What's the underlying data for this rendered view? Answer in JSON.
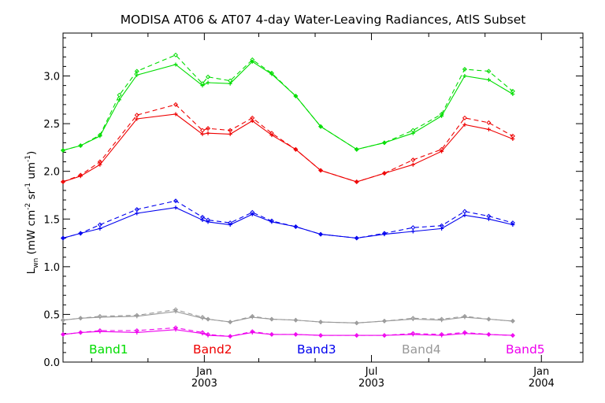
{
  "chart_data": {
    "type": "line",
    "title": "MODISA AT06 & AT07 4-day Water-Leaving Radiances, AtlS Subset",
    "ylabel": "L_wn (mW cm^-2 sr^-1 um^-1)",
    "xlabel": "",
    "ylim": [
      0,
      3.45
    ],
    "xlim": [
      "2002-08-01",
      "2004-02-15"
    ],
    "grid": false,
    "y_ticks": [
      {
        "value": 0.0,
        "label": "0.0"
      },
      {
        "value": 0.5,
        "label": "0.5"
      },
      {
        "value": 1.0,
        "label": "1.0"
      },
      {
        "value": 1.5,
        "label": "1.5"
      },
      {
        "value": 2.0,
        "label": "2.0"
      },
      {
        "value": 2.5,
        "label": "2.5"
      },
      {
        "value": 3.0,
        "label": "3.0"
      }
    ],
    "x_ticks": [
      {
        "date": "2003-01-01",
        "month": "Jan",
        "year": "2003"
      },
      {
        "date": "2003-07-01",
        "month": "Jul",
        "year": "2003"
      },
      {
        "date": "2004-01-01",
        "month": "Jan",
        "year": "2004"
      }
    ],
    "x": [
      "2002-08-01",
      "2002-08-20",
      "2002-09-10",
      "2002-10-01",
      "2002-10-20",
      "2002-11-10",
      "2002-12-01",
      "2002-12-10",
      "2002-12-30",
      "2003-01-05",
      "2003-01-29",
      "2003-02-22",
      "2003-03-15",
      "2003-04-10",
      "2003-05-07",
      "2003-06-15",
      "2003-07-15",
      "2003-08-15",
      "2003-09-15",
      "2003-10-10",
      "2003-11-05",
      "2003-12-01",
      "2003-12-24",
      "2004-01-20",
      "2004-02-15"
    ],
    "band_labels": [
      "Band1",
      "Band2",
      "Band3",
      "Band4",
      "Band5"
    ],
    "bands": [
      {
        "name": "Band1",
        "color": "#00dd00",
        "at06": [
          2.22,
          2.27,
          2.37,
          2.75,
          3.01,
          null,
          3.12,
          null,
          2.9,
          2.93,
          2.92,
          3.15,
          3.02,
          2.79,
          2.47,
          2.23,
          2.3,
          2.4,
          2.58,
          3.0,
          2.96,
          2.81,
          null,
          null,
          null
        ],
        "at07": [
          2.22,
          2.27,
          2.38,
          2.8,
          3.05,
          null,
          3.22,
          null,
          2.92,
          2.99,
          2.95,
          3.17,
          3.03,
          2.79,
          2.47,
          2.23,
          2.3,
          2.43,
          2.6,
          3.07,
          3.05,
          2.84,
          null,
          null,
          null
        ]
      },
      {
        "name": "Band2",
        "color": "#ee0000",
        "at06": [
          1.89,
          1.95,
          2.07,
          null,
          2.55,
          null,
          2.6,
          null,
          2.39,
          2.4,
          2.39,
          2.53,
          2.38,
          2.23,
          2.01,
          1.89,
          1.98,
          2.07,
          2.21,
          2.49,
          2.44,
          2.34,
          null,
          null,
          null
        ],
        "at07": [
          1.89,
          1.96,
          2.1,
          null,
          2.59,
          null,
          2.7,
          null,
          2.43,
          2.45,
          2.43,
          2.56,
          2.4,
          2.23,
          2.01,
          1.89,
          1.98,
          2.12,
          2.23,
          2.56,
          2.51,
          2.37,
          null,
          null,
          null
        ]
      },
      {
        "name": "Band3",
        "color": "#0000ee",
        "at06": [
          1.3,
          1.35,
          1.4,
          null,
          1.56,
          null,
          1.62,
          null,
          1.49,
          1.47,
          1.44,
          1.55,
          1.47,
          1.42,
          1.34,
          1.3,
          1.34,
          1.37,
          1.4,
          1.54,
          1.5,
          1.44,
          null,
          null,
          null
        ],
        "at07": [
          1.3,
          1.35,
          1.44,
          null,
          1.6,
          null,
          1.69,
          null,
          1.52,
          1.49,
          1.46,
          1.57,
          1.48,
          1.42,
          1.34,
          1.3,
          1.35,
          1.41,
          1.43,
          1.58,
          1.53,
          1.46,
          null,
          null,
          null
        ]
      },
      {
        "name": "Band4",
        "color": "#999999",
        "at06": [
          0.44,
          0.46,
          0.47,
          null,
          0.48,
          null,
          0.53,
          null,
          0.46,
          0.45,
          0.42,
          0.47,
          0.45,
          0.44,
          0.42,
          0.41,
          0.43,
          0.45,
          0.44,
          0.47,
          0.45,
          0.43,
          null,
          null,
          null
        ],
        "at07": [
          0.44,
          0.46,
          0.48,
          null,
          0.49,
          null,
          0.55,
          null,
          0.47,
          0.45,
          0.42,
          0.48,
          0.45,
          0.44,
          0.42,
          0.41,
          0.43,
          0.46,
          0.45,
          0.48,
          0.45,
          0.43,
          null,
          null,
          null
        ]
      },
      {
        "name": "Band5",
        "color": "#ee00ee",
        "at06": [
          0.29,
          0.31,
          0.32,
          null,
          0.31,
          null,
          0.34,
          null,
          0.3,
          0.28,
          0.27,
          0.31,
          0.29,
          0.29,
          0.28,
          0.28,
          0.28,
          0.29,
          0.28,
          0.3,
          0.29,
          0.28,
          null,
          null,
          null
        ],
        "at07": [
          0.29,
          0.31,
          0.33,
          null,
          0.33,
          null,
          0.36,
          null,
          0.31,
          0.29,
          0.27,
          0.32,
          0.29,
          0.29,
          0.28,
          0.28,
          0.28,
          0.3,
          0.29,
          0.31,
          0.29,
          0.28,
          null,
          null,
          null
        ]
      }
    ]
  }
}
